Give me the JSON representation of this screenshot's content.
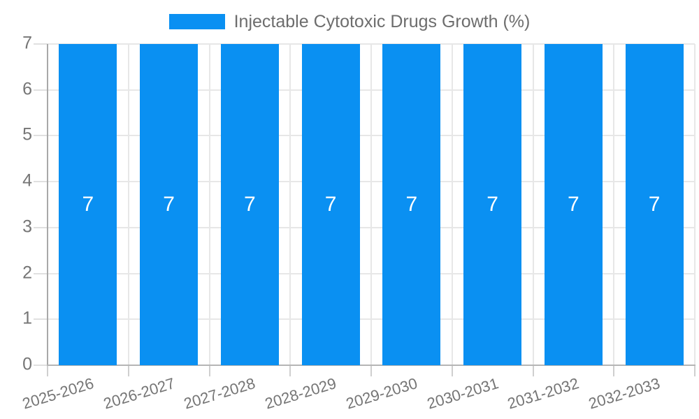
{
  "legend": {
    "label": "Injectable Cytotoxic Drugs Growth (%)",
    "swatch_color": "#0a90f2"
  },
  "chart_data": {
    "type": "bar",
    "title": "Injectable Cytotoxic Drugs Growth (%)",
    "categories": [
      "2025-2026",
      "2026-2027",
      "2027-2028",
      "2028-2029",
      "2029-2030",
      "2030-2031",
      "2031-2032",
      "2032-2033"
    ],
    "series": [
      {
        "name": "Injectable Cytotoxic Drugs Growth (%)",
        "values": [
          7,
          7,
          7,
          7,
          7,
          7,
          7,
          7
        ]
      }
    ],
    "bar_value_labels": [
      "7",
      "7",
      "7",
      "7",
      "7",
      "7",
      "7",
      "7"
    ],
    "xlabel": "",
    "ylabel": "",
    "ylim": [
      0,
      7
    ],
    "yticks": [
      0,
      1,
      2,
      3,
      4,
      5,
      6,
      7
    ],
    "grid": true,
    "legend_position": "top-center",
    "colors": {
      "bar": "#0a90f2",
      "bar_label": "#ffffff",
      "grid": "#e7e7e7",
      "axis_line": "#b5b5b5",
      "axis_text": "#757575",
      "legend_text": "#6d6d6d"
    }
  }
}
